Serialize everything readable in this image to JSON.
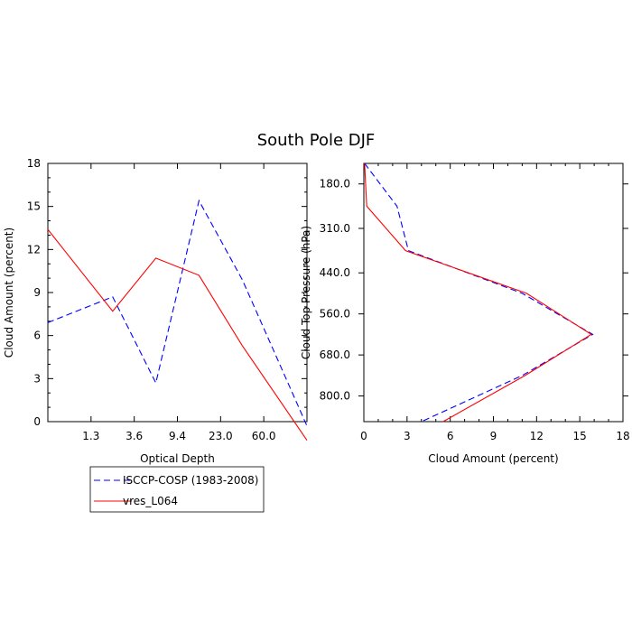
{
  "title": "South Pole DJF",
  "series_styles": [
    {
      "name": "ISCCP-COSP (1983-2008)",
      "color": "#0000ff",
      "dash": "dashed"
    },
    {
      "name": "vres_L064",
      "color": "#ff0000",
      "dash": "solid"
    }
  ],
  "chart_data": [
    {
      "type": "line",
      "title": "",
      "xlabel": "Optical Depth",
      "ylabel": "Cloud Amount (percent)",
      "x_tick_labels": [
        "1.3",
        "3.6",
        "9.4",
        "23.0",
        "60.0"
      ],
      "y_tick_labels": [
        "0",
        "3",
        "6",
        "9",
        "12",
        "15",
        "18"
      ],
      "ylim": [
        0,
        18
      ],
      "x_bin_edges": [
        "0.3",
        "1.3",
        "3.6",
        "9.4",
        "23.0",
        "60.0",
        "379.0"
      ],
      "x": [
        0.8,
        2.45,
        6.5,
        16.2,
        41.5,
        219.5
      ],
      "series": [
        {
          "name": "ISCCP-COSP (1983-2008)",
          "values": [
            7.5,
            8.7,
            2.7,
            15.4,
            9.9,
            3.1
          ]
        },
        {
          "name": "vres_L064",
          "values": [
            11.5,
            7.7,
            11.4,
            10.2,
            5.3,
            0.9
          ]
        }
      ]
    },
    {
      "type": "line",
      "title": "",
      "xlabel": "Cloud Amount (percent)",
      "ylabel": "Cloud Top Pressure (hPa)",
      "x_tick_labels": [
        "0",
        "3",
        "6",
        "9",
        "12",
        "15",
        "18"
      ],
      "xlim": [
        0,
        18
      ],
      "y_tick_labels": [
        "180.0",
        "310.0",
        "440.0",
        "560.0",
        "680.0",
        "800.0"
      ],
      "ylim": [
        120,
        875
      ],
      "y_inverted": true,
      "series": [
        {
          "name": "ISCCP-COSP (1983-2008)",
          "y": [
            120,
            245,
            375,
            500,
            620,
            740,
            875
          ],
          "values": [
            0.05,
            2.3,
            3.1,
            11.0,
            15.9,
            11.0,
            4.0
          ]
        },
        {
          "name": "vres_L064",
          "y": [
            120,
            245,
            375,
            500,
            620,
            740,
            875
          ],
          "values": [
            0.05,
            0.2,
            2.9,
            11.3,
            15.8,
            11.2,
            5.5
          ]
        }
      ]
    }
  ]
}
